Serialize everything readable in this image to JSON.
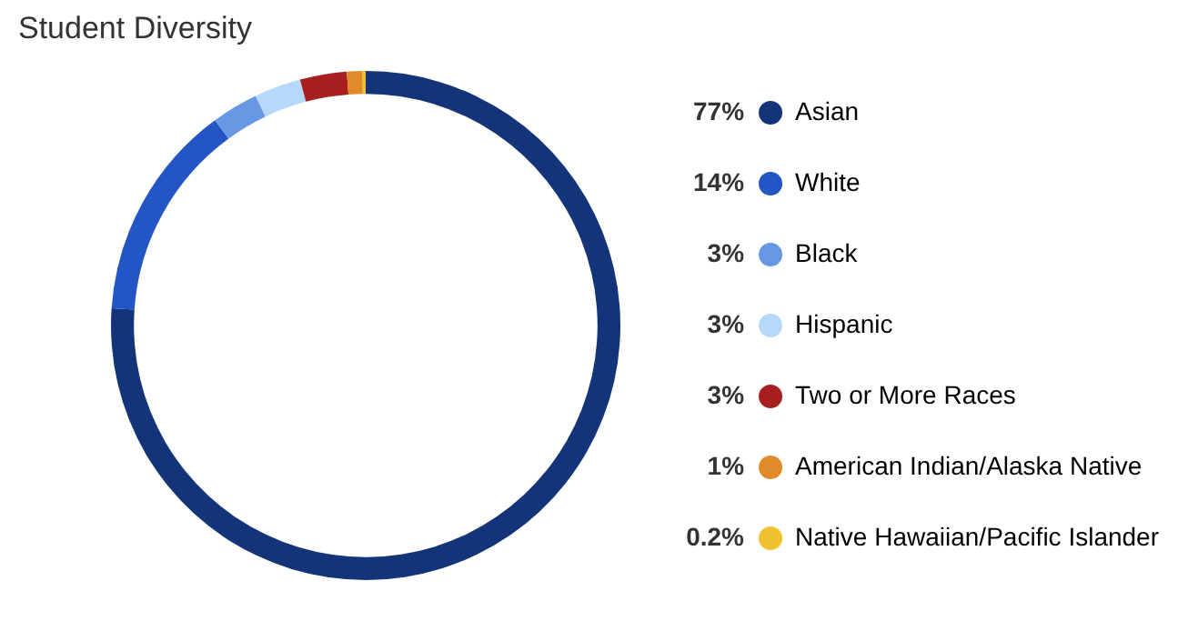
{
  "chart_data": {
    "type": "donut",
    "title": "Student Diversity",
    "categories": [
      "Asian",
      "White",
      "Black",
      "Hispanic",
      "Two or More Races",
      "American Indian/Alaska Native",
      "Native Hawaiian/Pacific Islander"
    ],
    "values": [
      77,
      14,
      3,
      3,
      3,
      1,
      0.2
    ],
    "value_labels": [
      "77%",
      "14%",
      "3%",
      "3%",
      "3%",
      "1%",
      "0.2%"
    ],
    "colors": [
      "#14347a",
      "#2355c4",
      "#6897e4",
      "#b5d8fb",
      "#a81f1f",
      "#e08a2a",
      "#f0c030"
    ],
    "legend": "right"
  }
}
